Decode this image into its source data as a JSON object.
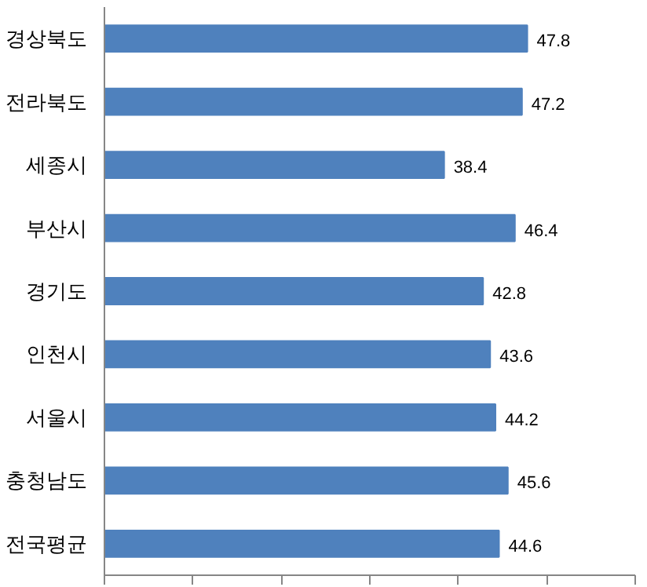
{
  "chart_data": {
    "type": "bar",
    "orientation": "horizontal",
    "categories": [
      "경상북도",
      "전라북도",
      "세종시",
      "부산시",
      "경기도",
      "인천시",
      "서울시",
      "충청남도",
      "전국평균"
    ],
    "values": [
      47.8,
      47.2,
      38.4,
      46.4,
      42.8,
      43.6,
      44.2,
      45.6,
      44.6
    ],
    "color": "#4f81bd",
    "data_labels": true,
    "xlim": [
      0,
      60
    ],
    "xticks": [
      {
        "value": 0,
        "label": null
      },
      {
        "value": 10,
        "label": null
      },
      {
        "value": 20,
        "label": null
      },
      {
        "value": 30,
        "label": null
      },
      {
        "value": 40,
        "label": null
      },
      {
        "value": 50,
        "label": null
      },
      {
        "value": 60,
        "label": null
      }
    ],
    "tick_labels": "y",
    "grid": false
  }
}
